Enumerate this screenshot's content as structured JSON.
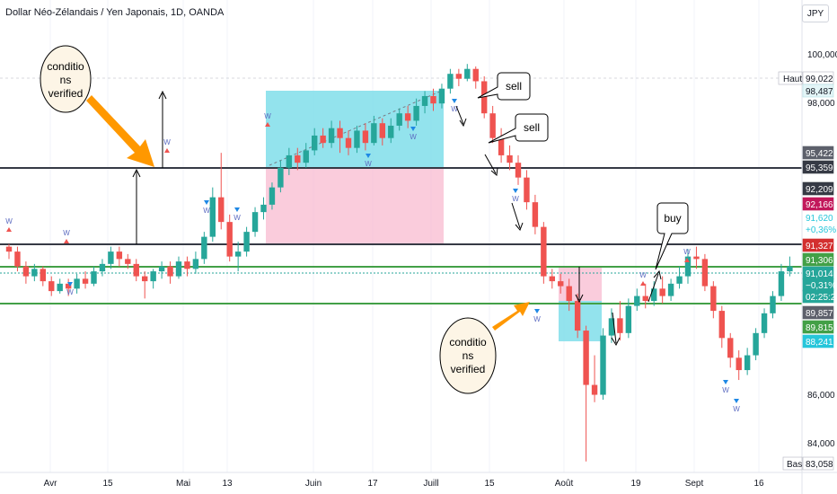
{
  "header": {
    "symbol_title": "Dollar Néo-Zélandais / Yen Japonais, 1D, OANDA",
    "currency_button": "JPY"
  },
  "price_axis": {
    "ticks": [
      "100,000",
      "98,000",
      "86,000",
      "84,000"
    ],
    "high_label": "Haut",
    "low_label": "Bas",
    "badges": [
      {
        "value": "99,022",
        "bg": "#ffffff",
        "fg": "#131722",
        "border": "#b2b5be"
      },
      {
        "value": "98,487",
        "bg": "#e3f5f7",
        "fg": "#131722",
        "border": "#b2dfe4"
      },
      {
        "value": "95,422",
        "bg": "#5d606b",
        "fg": "#ffffff",
        "border": "#5d606b"
      },
      {
        "value": "95,359",
        "bg": "#363a45",
        "fg": "#ffffff",
        "border": "#363a45"
      },
      {
        "value": "92,209",
        "bg": "#363a45",
        "fg": "#ffffff",
        "border": "#363a45"
      },
      {
        "value": "92,166",
        "bg": "#c2185b",
        "fg": "#ffffff",
        "border": "#c2185b"
      },
      {
        "value": "91,620",
        "bg": "#ffffff",
        "fg": "#26c6da",
        "border": "#ffffff"
      },
      {
        "value": "+0,36%",
        "bg": "#ffffff",
        "fg": "#26c6da",
        "border": "#ffffff"
      },
      {
        "value": "91,327",
        "bg": "#d32f2f",
        "fg": "#ffffff",
        "border": "#d32f2f"
      },
      {
        "value": "91,306",
        "bg": "#43a047",
        "fg": "#ffffff",
        "border": "#43a047"
      },
      {
        "value": "91,014",
        "bg": "#26a69a",
        "fg": "#ffffff",
        "border": "#26a69a"
      },
      {
        "value": "−0,31%",
        "bg": "#26a69a",
        "fg": "#ffffff",
        "border": "#26a69a"
      },
      {
        "value": "02:25:29",
        "bg": "#26a69a",
        "fg": "#ffffff",
        "border": "#26a69a"
      },
      {
        "value": "89,857",
        "bg": "#5d606b",
        "fg": "#ffffff",
        "border": "#5d606b"
      },
      {
        "value": "89,815",
        "bg": "#43a047",
        "fg": "#ffffff",
        "border": "#43a047"
      },
      {
        "value": "88,241",
        "bg": "#26c6da",
        "fg": "#ffffff",
        "border": "#26c6da"
      },
      {
        "value": "83,058",
        "bg": "#ffffff",
        "fg": "#131722",
        "border": "#b2b5be"
      }
    ]
  },
  "time_axis": [
    "Avr",
    "15",
    "Mai",
    "13",
    "Juin",
    "17",
    "Juill",
    "15",
    "Août",
    "19",
    "Sept",
    "16"
  ],
  "annotations": {
    "conditions_top": "conditio ns verified",
    "conditions_bottom": "conditio ns verified",
    "sell_1": "sell",
    "sell_2": "sell",
    "buy": "buy"
  },
  "marker_letter": "W",
  "colors": {
    "up": "#26a69a",
    "down": "#ef5350",
    "support_green": "#43a047",
    "resistance": "#363a45",
    "zone_cyan": "#80deea",
    "zone_pink": "#f8bbd0",
    "arrow_orange": "#ff9800",
    "callout_fill": "#fdf5e6"
  },
  "chart_data": {
    "type": "candlestick",
    "timeframe": "1D",
    "ylim": [
      82.8,
      101.5
    ],
    "candles": [
      [
        91.8,
        91.6,
        91.9,
        91.3
      ],
      [
        91.6,
        91.0,
        91.8,
        90.8
      ],
      [
        91.0,
        90.6,
        91.2,
        90.3
      ],
      [
        90.6,
        90.9,
        91.1,
        90.4
      ],
      [
        90.9,
        90.4,
        91.0,
        90.2
      ],
      [
        90.4,
        90.0,
        90.6,
        89.8
      ],
      [
        90.0,
        90.3,
        90.5,
        89.9
      ],
      [
        90.3,
        90.1,
        90.5,
        89.8
      ],
      [
        90.1,
        90.5,
        90.7,
        89.9
      ],
      [
        90.5,
        90.3,
        90.8,
        90.1
      ],
      [
        90.3,
        90.8,
        91.0,
        90.2
      ],
      [
        90.8,
        91.1,
        91.3,
        90.6
      ],
      [
        91.1,
        91.6,
        91.8,
        90.9
      ],
      [
        91.6,
        91.3,
        91.8,
        91.0
      ],
      [
        91.3,
        91.1,
        91.5,
        90.9
      ],
      [
        91.1,
        90.6,
        91.3,
        90.4
      ],
      [
        90.6,
        90.4,
        90.8,
        89.7
      ],
      [
        90.4,
        90.8,
        90.9,
        90.1
      ],
      [
        90.8,
        91.0,
        91.2,
        90.5
      ],
      [
        91.0,
        90.6,
        91.2,
        90.3
      ],
      [
        90.6,
        91.2,
        91.4,
        90.5
      ],
      [
        91.2,
        90.9,
        91.4,
        90.6
      ],
      [
        90.9,
        91.3,
        91.6,
        90.7
      ],
      [
        91.3,
        92.2,
        92.4,
        91.1
      ],
      [
        92.2,
        93.8,
        94.2,
        92.0
      ],
      [
        93.8,
        92.8,
        95.6,
        92.5
      ],
      [
        92.8,
        91.4,
        93.1,
        91.2
      ],
      [
        91.4,
        91.6,
        92.0,
        90.8
      ],
      [
        91.6,
        92.4,
        92.6,
        91.4
      ],
      [
        92.4,
        93.2,
        93.4,
        92.2
      ],
      [
        93.2,
        93.5,
        93.8,
        92.9
      ],
      [
        93.5,
        94.2,
        94.4,
        93.3
      ],
      [
        94.2,
        95.0,
        95.3,
        94.0
      ],
      [
        95.0,
        95.5,
        95.8,
        94.7
      ],
      [
        95.5,
        95.2,
        95.8,
        94.9
      ],
      [
        95.2,
        95.7,
        96.0,
        95.0
      ],
      [
        95.7,
        96.3,
        96.6,
        95.5
      ],
      [
        96.3,
        96.0,
        96.6,
        95.8
      ],
      [
        96.0,
        96.6,
        96.9,
        95.8
      ],
      [
        96.6,
        96.2,
        96.9,
        95.6
      ],
      [
        96.2,
        95.8,
        96.5,
        95.5
      ],
      [
        95.8,
        96.5,
        96.7,
        95.6
      ],
      [
        96.5,
        96.0,
        96.8,
        95.7
      ],
      [
        96.0,
        96.8,
        97.1,
        95.9
      ],
      [
        96.8,
        96.2,
        97.0,
        95.9
      ],
      [
        96.2,
        96.7,
        97.0,
        96.0
      ],
      [
        96.7,
        97.2,
        97.4,
        96.5
      ],
      [
        97.2,
        96.9,
        97.5,
        96.6
      ],
      [
        96.9,
        97.5,
        97.8,
        96.7
      ],
      [
        97.5,
        97.9,
        98.1,
        97.2
      ],
      [
        97.9,
        97.6,
        98.2,
        97.3
      ],
      [
        97.6,
        98.2,
        98.4,
        97.4
      ],
      [
        98.2,
        98.8,
        99.0,
        98.0
      ],
      [
        98.8,
        98.6,
        99.0,
        98.3
      ],
      [
        98.6,
        99.0,
        99.2,
        98.5
      ],
      [
        99.0,
        98.5,
        99.1,
        98.2
      ],
      [
        98.5,
        97.2,
        98.7,
        97.0
      ],
      [
        97.2,
        96.2,
        97.5,
        96.0
      ],
      [
        96.2,
        95.5,
        96.6,
        95.2
      ],
      [
        95.5,
        95.2,
        95.9,
        94.9
      ],
      [
        95.2,
        94.6,
        95.5,
        94.3
      ],
      [
        94.6,
        93.6,
        94.9,
        93.3
      ],
      [
        93.6,
        92.6,
        93.9,
        92.3
      ],
      [
        92.6,
        90.6,
        92.8,
        90.3
      ],
      [
        90.6,
        90.4,
        90.9,
        90.1
      ],
      [
        90.4,
        90.2,
        90.7,
        89.9
      ],
      [
        90.2,
        89.6,
        90.5,
        89.2
      ],
      [
        89.6,
        88.4,
        89.9,
        88.1
      ],
      [
        88.4,
        86.2,
        88.6,
        83.1
      ],
      [
        86.2,
        85.8,
        87.4,
        85.5
      ],
      [
        85.8,
        88.2,
        88.5,
        85.6
      ],
      [
        88.2,
        88.9,
        89.3,
        87.9
      ],
      [
        88.9,
        88.3,
        89.6,
        88.0
      ],
      [
        88.3,
        89.4,
        89.7,
        88.1
      ],
      [
        89.4,
        89.8,
        90.1,
        89.2
      ],
      [
        89.8,
        89.6,
        90.3,
        89.3
      ],
      [
        89.6,
        90.1,
        90.4,
        89.4
      ],
      [
        90.1,
        89.8,
        90.6,
        89.5
      ],
      [
        89.8,
        90.3,
        90.5,
        89.6
      ],
      [
        90.3,
        90.6,
        91.0,
        90.1
      ],
      [
        90.6,
        91.4,
        91.7,
        90.3
      ],
      [
        91.4,
        91.3,
        91.8,
        90.9
      ],
      [
        91.3,
        90.2,
        91.5,
        90.0
      ],
      [
        90.2,
        89.2,
        90.4,
        88.9
      ],
      [
        89.2,
        88.1,
        89.4,
        87.7
      ],
      [
        88.1,
        87.3,
        88.3,
        86.9
      ],
      [
        87.3,
        86.8,
        87.6,
        86.4
      ],
      [
        86.8,
        87.4,
        87.7,
        86.6
      ],
      [
        87.4,
        88.3,
        88.5,
        87.2
      ],
      [
        88.3,
        89.1,
        89.3,
        88.1
      ],
      [
        89.1,
        89.8,
        90.0,
        88.9
      ],
      [
        89.8,
        90.8,
        91.1,
        89.6
      ],
      [
        90.8,
        91.0,
        91.4,
        90.6
      ]
    ],
    "horizontal_levels": [
      95.39,
      92.19,
      91.31,
      89.84
    ],
    "annotations": [
      "conditio ns verified",
      "sell",
      "sell",
      "buy",
      "conditio ns verified"
    ]
  }
}
